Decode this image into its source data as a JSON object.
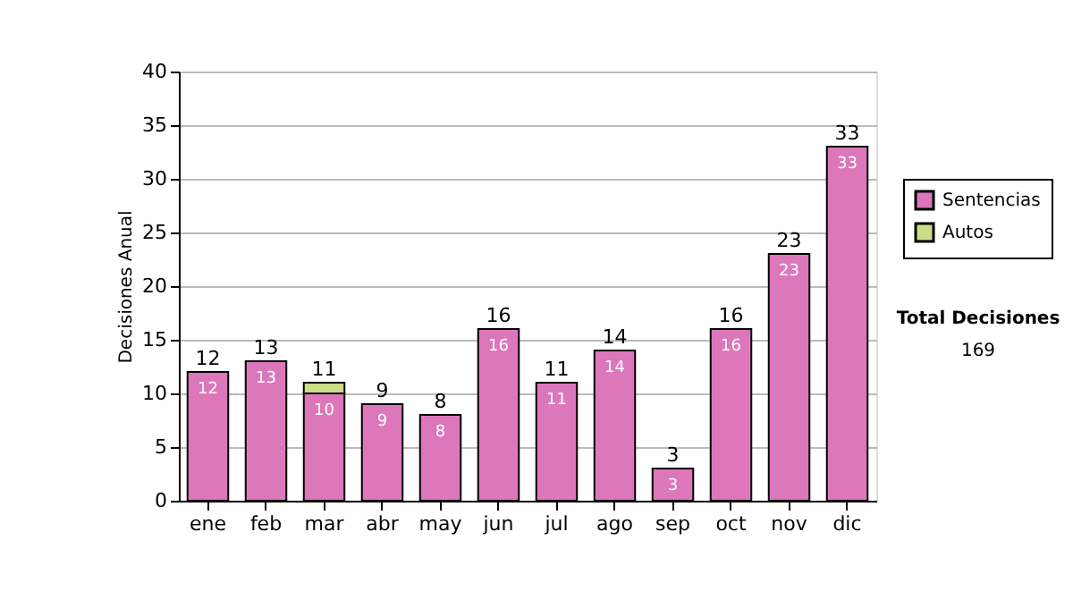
{
  "chart_data": {
    "type": "bar",
    "stacked": true,
    "ylabel": "Decisiones Anual",
    "categories": [
      "ene",
      "feb",
      "mar",
      "abr",
      "may",
      "jun",
      "jul",
      "ago",
      "sep",
      "oct",
      "nov",
      "dic"
    ],
    "series": [
      {
        "name": "Sentencias",
        "color": "#dd77bb",
        "values": [
          12,
          13,
          10,
          9,
          8,
          16,
          11,
          14,
          3,
          16,
          23,
          33
        ],
        "value_labels": [
          "12",
          "13",
          "10",
          "9",
          "8",
          "16",
          "11",
          "14",
          "3",
          "16",
          "23",
          "33"
        ]
      },
      {
        "name": "Autos",
        "color": "#ccdd88",
        "values": [
          null,
          null,
          1,
          null,
          null,
          null,
          null,
          null,
          null,
          null,
          null,
          null
        ],
        "value_labels": [
          null,
          null,
          null,
          null,
          null,
          null,
          null,
          null,
          null,
          null,
          null,
          null
        ]
      }
    ],
    "totals": [
      "12",
      "13",
      "11",
      "9",
      "8",
      "16",
      "11",
      "14",
      "3",
      "16",
      "23",
      "33"
    ],
    "ylim": [
      0,
      40
    ],
    "yticks": [
      0,
      5,
      10,
      15,
      20,
      25,
      30,
      35,
      40
    ],
    "grid": "y",
    "legend": "right",
    "annotations": [
      "Total Decisiones",
      "169"
    ]
  }
}
